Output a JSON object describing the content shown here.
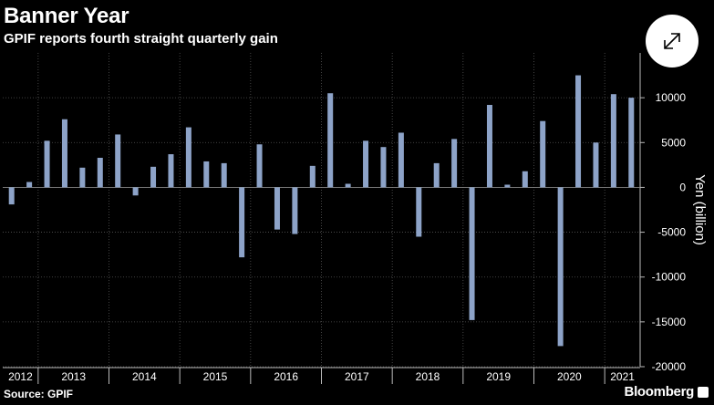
{
  "header": {
    "title": "Banner Year",
    "subtitle": "GPIF reports fourth straight quarterly gain"
  },
  "footer": {
    "source": "Source: GPIF",
    "brand": "Bloomberg"
  },
  "icons": {
    "expand": "expand-arrows-icon",
    "brand_logo": "bloomberg-logo-icon"
  },
  "colors": {
    "background": "#000000",
    "bar": "#8da3c8",
    "grid": "#555555",
    "text": "#ffffff"
  },
  "chart_data": {
    "type": "bar",
    "ylabel": "Yen (billion)",
    "ylim": [
      -20000,
      15000
    ],
    "yticks": [
      10000,
      5000,
      0,
      -5000,
      -10000,
      -15000,
      -20000
    ],
    "ytick_labels": [
      "10000",
      "5000",
      "0",
      "-5000",
      "-10000",
      "-15000",
      "-20000"
    ],
    "grid": true,
    "years": [
      {
        "label": "2012",
        "quarters": 2
      },
      {
        "label": "2013",
        "quarters": 4
      },
      {
        "label": "2014",
        "quarters": 4
      },
      {
        "label": "2015",
        "quarters": 4
      },
      {
        "label": "2016",
        "quarters": 4
      },
      {
        "label": "2017",
        "quarters": 4
      },
      {
        "label": "2018",
        "quarters": 4
      },
      {
        "label": "2019",
        "quarters": 4
      },
      {
        "label": "2020",
        "quarters": 4
      },
      {
        "label": "2021",
        "quarters": 2
      }
    ],
    "values": [
      -1900,
      600,
      5200,
      7600,
      2200,
      3300,
      5900,
      -900,
      2300,
      3700,
      6700,
      2900,
      2700,
      -7800,
      4800,
      -4700,
      -5200,
      2400,
      10500,
      400,
      5200,
      4500,
      6100,
      -5500,
      2700,
      5400,
      -14800,
      9200,
      300,
      1800,
      7400,
      -17700,
      12500,
      5000,
      10400,
      10000
    ]
  }
}
